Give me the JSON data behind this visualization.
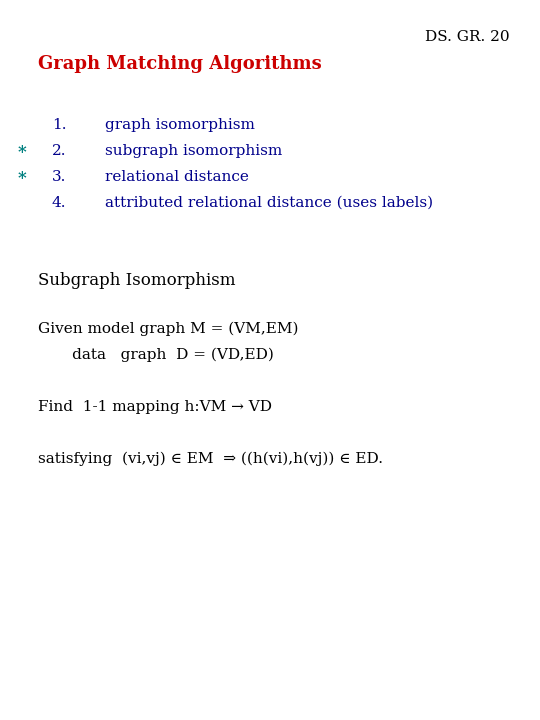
{
  "bg_color": "#ffffff",
  "slide_id": "DS. GR. 20",
  "slide_id_color": "#000000",
  "title": "Graph Matching Algorithms",
  "title_color": "#cc0000",
  "list_items": [
    {
      "num": "1.",
      "text": "graph isomorphism",
      "star": false
    },
    {
      "num": "2.",
      "text": "subgraph isomorphism",
      "star": true
    },
    {
      "num": "3.",
      "text": "relational distance",
      "star": true
    },
    {
      "num": "4.",
      "text": "attributed relational distance (uses labels)",
      "star": false
    }
  ],
  "list_color": "#00008b",
  "star_color": "#008080",
  "section_heading": "Subgraph Isomorphism",
  "para1_line1": "Given model graph M = (VM,EM)",
  "para1_line2": "       data   graph  D = (VD,ED)",
  "para2": "Find  1-1 mapping h:VM → VD",
  "para3": "satisfying  (vi,vj) ∈ EM  ⇒ ((h(vi),h(vj)) ∈ ED.",
  "body_color": "#000000",
  "font_family": "DejaVu Serif",
  "slide_id_fontsize": 11,
  "title_fontsize": 13,
  "list_fontsize": 11,
  "body_fontsize": 11,
  "section_heading_fontsize": 12,
  "fig_width": 5.4,
  "fig_height": 7.2,
  "dpi": 100
}
